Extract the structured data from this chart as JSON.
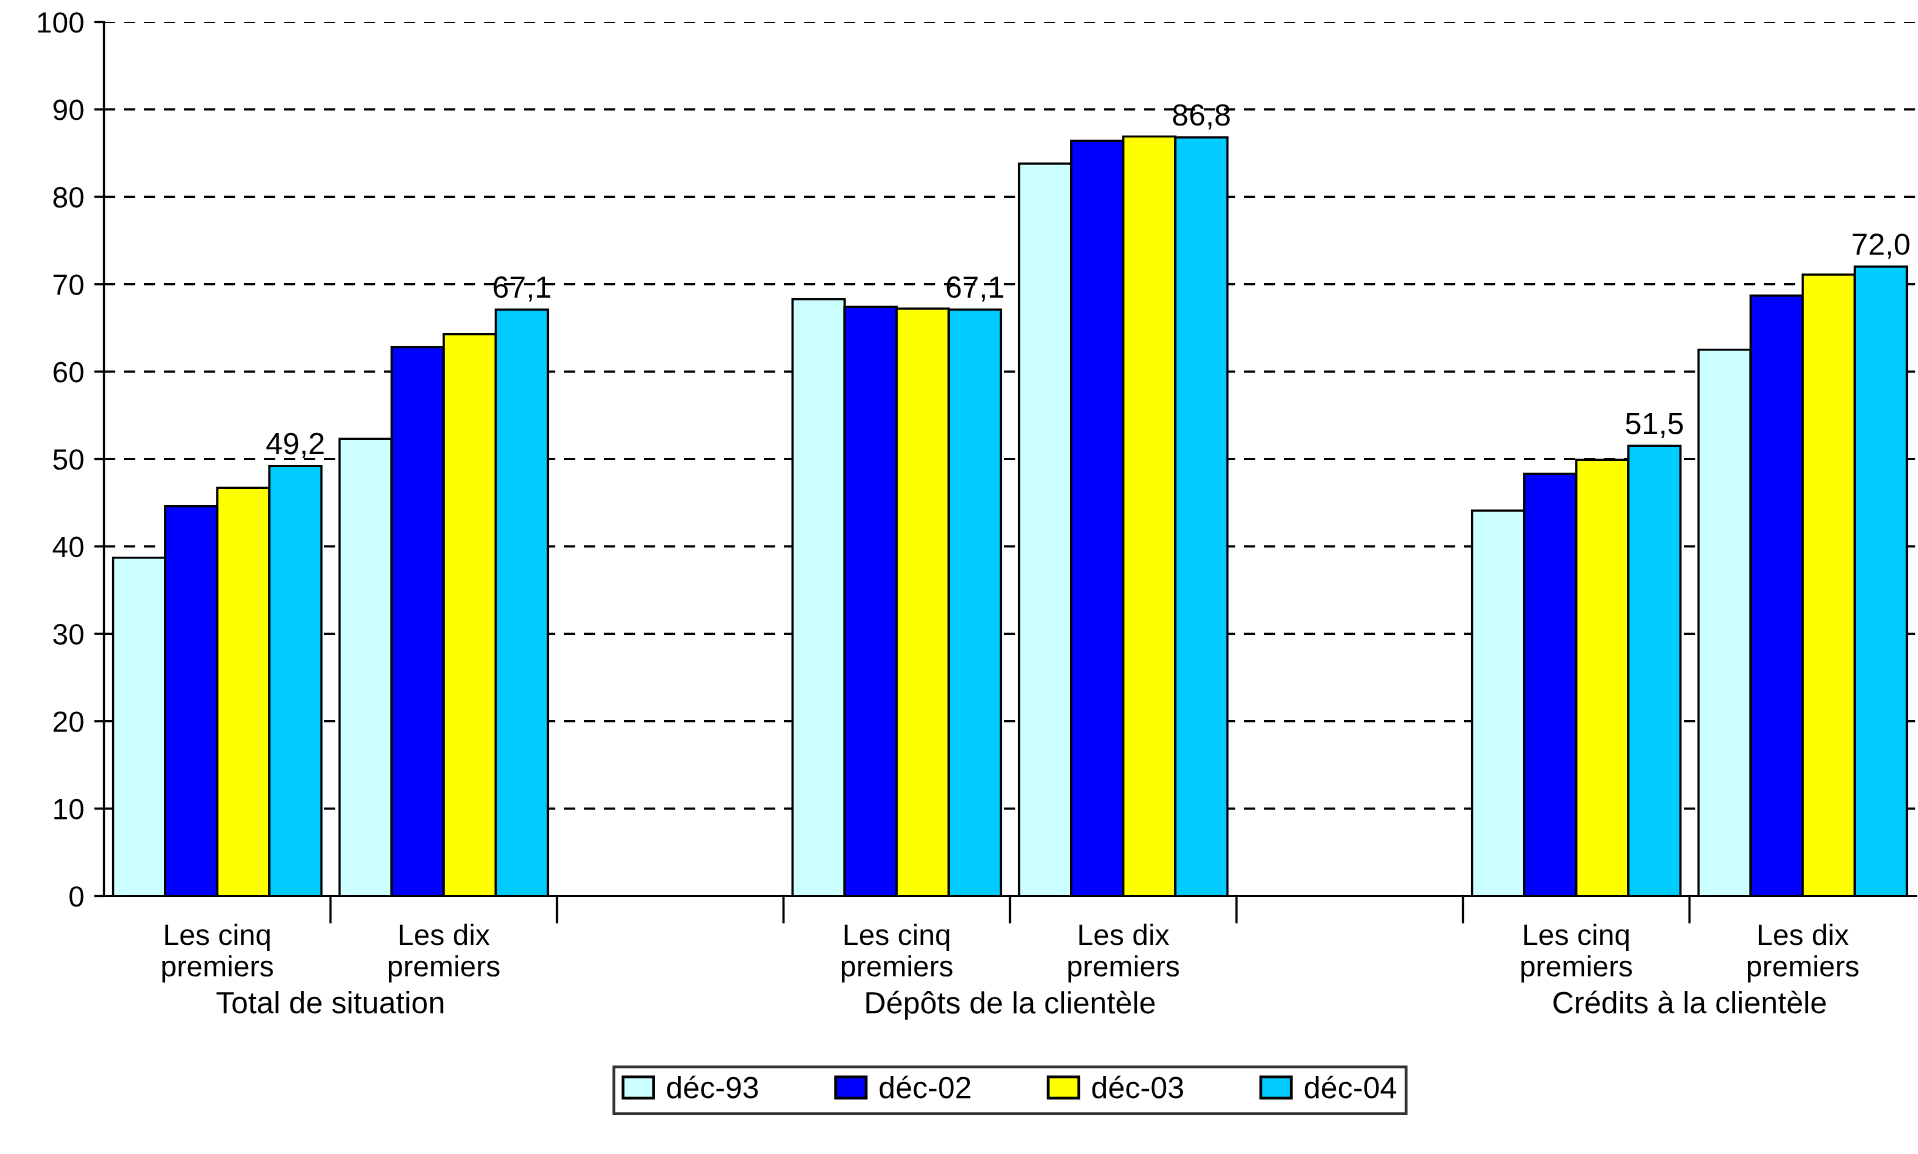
{
  "chart_data": {
    "type": "bar",
    "categories": [
      "Les cinq\npremiers",
      "Les dix\npremiers",
      null,
      "Les cinq\npremiers",
      "Les dix\npremiers",
      null,
      "Les cinq\npremiers",
      "Les dix\npremiers"
    ],
    "series": [
      {
        "name": "déc-93",
        "color": "#ccffff",
        "values": [
          38.7,
          52.3,
          null,
          68.3,
          83.8,
          null,
          44.1,
          62.5
        ]
      },
      {
        "name": "déc-02",
        "color": "#0000ff",
        "values": [
          44.6,
          62.8,
          null,
          67.4,
          86.4,
          null,
          48.3,
          68.7
        ]
      },
      {
        "name": "déc-03",
        "color": "#ffff00",
        "values": [
          46.7,
          64.3,
          null,
          67.2,
          86.9,
          null,
          49.9,
          71.1
        ]
      },
      {
        "name": "déc-04",
        "color": "#00ccff",
        "values": [
          49.2,
          67.1,
          null,
          67.1,
          86.8,
          null,
          51.5,
          72.0
        ],
        "value_labels": [
          "49,2",
          "67,1",
          null,
          "67,1",
          "86,8",
          null,
          "51,5",
          "72,0"
        ]
      }
    ],
    "annotations": [
      "Total de situation",
      "Dépôts de la clientèle",
      "Crédits à la clientèle"
    ],
    "ylim": [
      0,
      100
    ],
    "yticks": [
      0,
      10,
      20,
      30,
      40,
      50,
      60,
      70,
      80,
      90,
      100
    ],
    "grid": "y",
    "legend": "bottom"
  }
}
